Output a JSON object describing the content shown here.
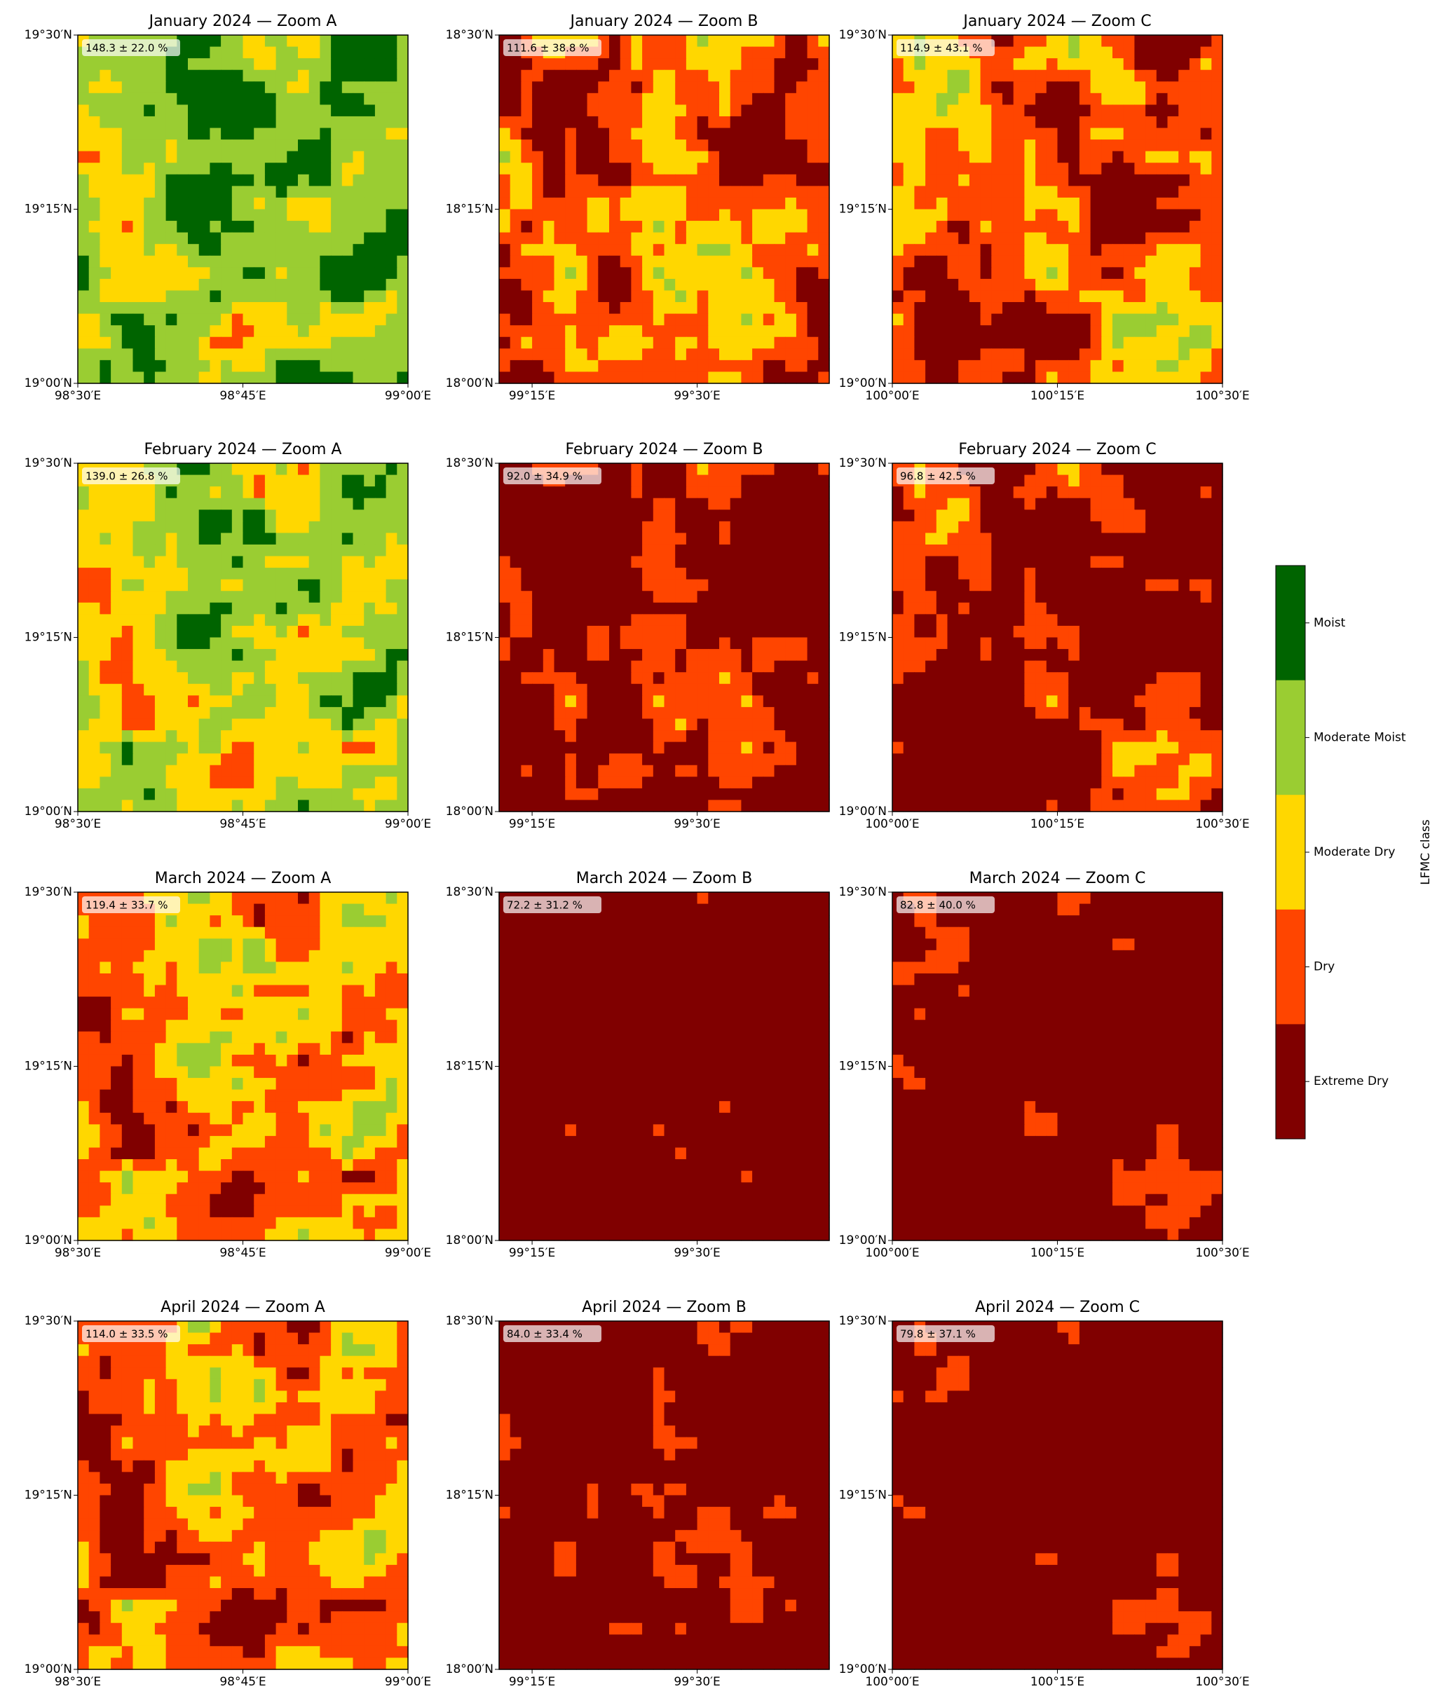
{
  "figure": {
    "panels": [
      {
        "title": "January 2024 — Zoom A",
        "annotation": "148.3 ± 22.0 %",
        "xlim": [
          98.5,
          99.0
        ],
        "ylim": [
          19.0,
          19.5
        ],
        "xticks": [
          {
            "value": 98.5,
            "label": "98°30′E"
          },
          {
            "value": 98.75,
            "label": "98°45′E"
          },
          {
            "value": 99.0,
            "label": "99°00′E"
          }
        ],
        "yticks": [
          {
            "value": 19.0,
            "label": "19°00′N"
          },
          {
            "value": 19.25,
            "label": "19°15′N"
          },
          {
            "value": 19.5,
            "label": "19°30′N"
          }
        ]
      },
      {
        "title": "January 2024 — Zoom B",
        "annotation": "111.6 ± 38.8 %",
        "xlim": [
          99.2,
          99.7
        ],
        "ylim": [
          18.0,
          18.5
        ],
        "xticks": [
          {
            "value": 99.25,
            "label": "99°15′E"
          },
          {
            "value": 99.5,
            "label": "99°30′E"
          }
        ],
        "yticks": [
          {
            "value": 18.0,
            "label": "18°00′N"
          },
          {
            "value": 18.25,
            "label": "18°15′N"
          },
          {
            "value": 18.5,
            "label": "18°30′N"
          }
        ]
      },
      {
        "title": "January 2024 — Zoom C",
        "annotation": "114.9 ± 43.1 %",
        "xlim": [
          100.0,
          100.5
        ],
        "ylim": [
          19.0,
          19.5
        ],
        "xticks": [
          {
            "value": 100.0,
            "label": "100°00′E"
          },
          {
            "value": 100.25,
            "label": "100°15′E"
          },
          {
            "value": 100.5,
            "label": "100°30′E"
          }
        ],
        "yticks": [
          {
            "value": 19.0,
            "label": "19°00′N"
          },
          {
            "value": 19.25,
            "label": "19°15′N"
          },
          {
            "value": 19.5,
            "label": "19°30′N"
          }
        ]
      },
      {
        "title": "February 2024 — Zoom A",
        "annotation": "139.0 ± 26.8 %",
        "xlim": [
          98.5,
          99.0
        ],
        "ylim": [
          19.0,
          19.5
        ],
        "xticks": [
          {
            "value": 98.5,
            "label": "98°30′E"
          },
          {
            "value": 98.75,
            "label": "98°45′E"
          },
          {
            "value": 99.0,
            "label": "99°00′E"
          }
        ],
        "yticks": [
          {
            "value": 19.0,
            "label": "19°00′N"
          },
          {
            "value": 19.25,
            "label": "19°15′N"
          },
          {
            "value": 19.5,
            "label": "19°30′N"
          }
        ]
      },
      {
        "title": "February 2024 — Zoom B",
        "annotation": "92.0 ± 34.9 %",
        "xlim": [
          99.2,
          99.7
        ],
        "ylim": [
          18.0,
          18.5
        ],
        "xticks": [
          {
            "value": 99.25,
            "label": "99°15′E"
          },
          {
            "value": 99.5,
            "label": "99°30′E"
          }
        ],
        "yticks": [
          {
            "value": 18.0,
            "label": "18°00′N"
          },
          {
            "value": 18.25,
            "label": "18°15′N"
          },
          {
            "value": 18.5,
            "label": "18°30′N"
          }
        ]
      },
      {
        "title": "February 2024 — Zoom C",
        "annotation": "96.8 ± 42.5 %",
        "xlim": [
          100.0,
          100.5
        ],
        "ylim": [
          19.0,
          19.5
        ],
        "xticks": [
          {
            "value": 100.0,
            "label": "100°00′E"
          },
          {
            "value": 100.25,
            "label": "100°15′E"
          },
          {
            "value": 100.5,
            "label": "100°30′E"
          }
        ],
        "yticks": [
          {
            "value": 19.0,
            "label": "19°00′N"
          },
          {
            "value": 19.25,
            "label": "19°15′N"
          },
          {
            "value": 19.5,
            "label": "19°30′N"
          }
        ]
      },
      {
        "title": "March 2024 — Zoom A",
        "annotation": "119.4 ± 33.7 %",
        "xlim": [
          98.5,
          99.0
        ],
        "ylim": [
          19.0,
          19.5
        ],
        "xticks": [
          {
            "value": 98.5,
            "label": "98°30′E"
          },
          {
            "value": 98.75,
            "label": "98°45′E"
          },
          {
            "value": 99.0,
            "label": "99°00′E"
          }
        ],
        "yticks": [
          {
            "value": 19.0,
            "label": "19°00′N"
          },
          {
            "value": 19.25,
            "label": "19°15′N"
          },
          {
            "value": 19.5,
            "label": "19°30′N"
          }
        ]
      },
      {
        "title": "March 2024 — Zoom B",
        "annotation": "72.2 ± 31.2 %",
        "xlim": [
          99.2,
          99.7
        ],
        "ylim": [
          18.0,
          18.5
        ],
        "xticks": [
          {
            "value": 99.25,
            "label": "99°15′E"
          },
          {
            "value": 99.5,
            "label": "99°30′E"
          }
        ],
        "yticks": [
          {
            "value": 18.0,
            "label": "18°00′N"
          },
          {
            "value": 18.25,
            "label": "18°15′N"
          },
          {
            "value": 18.5,
            "label": "18°30′N"
          }
        ]
      },
      {
        "title": "March 2024 — Zoom C",
        "annotation": "82.8 ± 40.0 %",
        "xlim": [
          100.0,
          100.5
        ],
        "ylim": [
          19.0,
          19.5
        ],
        "xticks": [
          {
            "value": 100.0,
            "label": "100°00′E"
          },
          {
            "value": 100.25,
            "label": "100°15′E"
          },
          {
            "value": 100.5,
            "label": "100°30′E"
          }
        ],
        "yticks": [
          {
            "value": 19.0,
            "label": "19°00′N"
          },
          {
            "value": 19.25,
            "label": "19°15′N"
          },
          {
            "value": 19.5,
            "label": "19°30′N"
          }
        ]
      },
      {
        "title": "April 2024 — Zoom A",
        "annotation": "114.0 ± 33.5 %",
        "xlim": [
          98.5,
          99.0
        ],
        "ylim": [
          19.0,
          19.5
        ],
        "xticks": [
          {
            "value": 98.5,
            "label": "98°30′E"
          },
          {
            "value": 98.75,
            "label": "98°45′E"
          },
          {
            "value": 99.0,
            "label": "99°00′E"
          }
        ],
        "yticks": [
          {
            "value": 19.0,
            "label": "19°00′N"
          },
          {
            "value": 19.25,
            "label": "19°15′N"
          },
          {
            "value": 19.5,
            "label": "19°30′N"
          }
        ]
      },
      {
        "title": "April 2024 — Zoom B",
        "annotation": "84.0 ± 33.4 %",
        "xlim": [
          99.2,
          99.7
        ],
        "ylim": [
          18.0,
          18.5
        ],
        "xticks": [
          {
            "value": 99.25,
            "label": "99°15′E"
          },
          {
            "value": 99.5,
            "label": "99°30′E"
          }
        ],
        "yticks": [
          {
            "value": 18.0,
            "label": "18°00′N"
          },
          {
            "value": 18.25,
            "label": "18°15′N"
          },
          {
            "value": 18.5,
            "label": "18°30′N"
          }
        ]
      },
      {
        "title": "April 2024 — Zoom C",
        "annotation": "79.8 ± 37.1 %",
        "xlim": [
          100.0,
          100.5
        ],
        "ylim": [
          19.0,
          19.5
        ],
        "xticks": [
          {
            "value": 100.0,
            "label": "100°00′E"
          },
          {
            "value": 100.25,
            "label": "100°15′E"
          },
          {
            "value": 100.5,
            "label": "100°30′E"
          }
        ],
        "yticks": [
          {
            "value": 19.0,
            "label": "19°00′N"
          },
          {
            "value": 19.25,
            "label": "19°15′N"
          },
          {
            "value": 19.5,
            "label": "19°30′N"
          }
        ]
      }
    ],
    "colorbar": {
      "label": "LFMC class",
      "classes": [
        {
          "name": "Moist",
          "color": "#006400"
        },
        {
          "name": "Moderate Moist",
          "color": "#9acd32"
        },
        {
          "name": "Moderate Dry",
          "color": "#ffd700"
        },
        {
          "name": "Dry",
          "color": "#ff4500"
        },
        {
          "name": "Extreme Dry",
          "color": "#800000"
        }
      ]
    }
  }
}
